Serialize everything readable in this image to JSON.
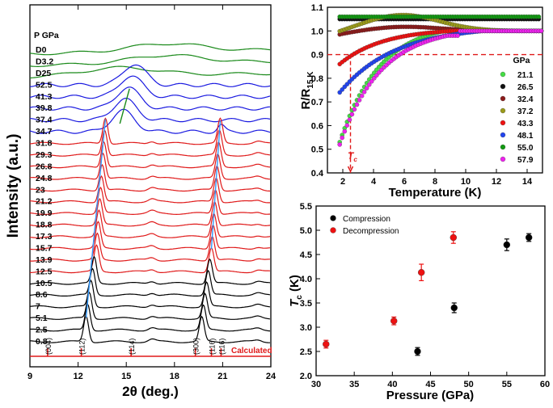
{
  "chart_data": [
    {
      "id": "xrd",
      "type": "line",
      "xlabel": "2θ (deg.)",
      "ylabel": "Intensity (a.u.)",
      "xlim": [
        9,
        24
      ],
      "xticks": [
        "9",
        "12",
        "15",
        "18",
        "21",
        "24"
      ],
      "header_label": "P GPa",
      "calculated_label": "Calculated",
      "pressures": [
        "D0",
        "D3.2",
        "D25",
        "52.5",
        "41.3",
        "39.8",
        "37.4",
        "34.7",
        "31.8",
        "29.3",
        "26.8",
        "24.8",
        "23",
        "21.2",
        "19.9",
        "18.8",
        "17.3",
        "15.7",
        "13.9",
        "12.5",
        "10.5",
        "8.6",
        "7",
        "5.1",
        "2.5",
        "0.8"
      ],
      "colors": [
        "#1a8a1a",
        "#1a8a1a",
        "#1a8a1a",
        "#1a1ae0",
        "#1a1ae0",
        "#1a1ae0",
        "#1a1ae0",
        "#1a1ae0",
        "#e01a1a",
        "#e01a1a",
        "#e01a1a",
        "#e01a1a",
        "#e01a1a",
        "#e01a1a",
        "#e01a1a",
        "#e01a1a",
        "#e01a1a",
        "#e01a1a",
        "#e01a1a",
        "#e01a1a",
        "#000000",
        "#000000",
        "#000000",
        "#000000",
        "#000000",
        "#000000"
      ],
      "peak1_positions": [
        null,
        null,
        14.6,
        15.5,
        15.3,
        15.1,
        14.9,
        14.8,
        13.7,
        13.65,
        13.6,
        13.55,
        13.5,
        13.45,
        13.4,
        13.35,
        13.3,
        13.25,
        13.2,
        13.15,
        13.0,
        12.9,
        12.8,
        12.7,
        12.6,
        12.5
      ],
      "peak2_positions": [
        null,
        null,
        null,
        null,
        null,
        null,
        null,
        20.9,
        20.85,
        20.8,
        20.75,
        20.7,
        20.65,
        20.6,
        20.55,
        20.5,
        20.45,
        20.4,
        20.35,
        20.3,
        20.2,
        20.1,
        20.0,
        19.9,
        19.8,
        19.7
      ],
      "reflections": [
        {
          "label": "(004)",
          "x": 10.1
        },
        {
          "label": "(112)",
          "x": 12.2
        },
        {
          "label": "(114)",
          "x": 15.3
        },
        {
          "label": "(300)",
          "x": 19.3
        },
        {
          "label": "(116)",
          "x": 20.3
        },
        {
          "label": "(116)",
          "x": 20.9
        }
      ]
    },
    {
      "id": "resistance",
      "type": "scatter",
      "xlabel": "Temperature (K)",
      "ylabel": "R/R",
      "ylabel_sub": "15 K",
      "xlim": [
        1,
        15
      ],
      "ylim": [
        0.4,
        1.1
      ],
      "xticks": [
        "2",
        "4",
        "6",
        "8",
        "10",
        "12",
        "14"
      ],
      "yticks": [
        "0.4",
        "0.5",
        "0.6",
        "0.7",
        "0.8",
        "0.9",
        "1.0",
        "1.1"
      ],
      "legend_title": "GPa",
      "tc_label": "T",
      "tc_sub": "c",
      "tc_value": 2.5,
      "threshold": 0.9,
      "series": [
        {
          "name": "21.1",
          "color": "#44dd44",
          "tc": 2.3,
          "start": 0.53,
          "plateau": 1.0,
          "hump": 0.0
        },
        {
          "name": "26.5",
          "color": "#111111",
          "tc": 1.0,
          "start": 1.05,
          "plateau": 1.05,
          "hump": 0.0
        },
        {
          "name": "32.4",
          "color": "#8b1a1a",
          "tc": 1.0,
          "start": 0.98,
          "plateau": 1.0,
          "hump": 0.02
        },
        {
          "name": "37.2",
          "color": "#9a9a1a",
          "tc": 1.0,
          "start": 0.98,
          "plateau": 1.0,
          "hump": 0.07
        },
        {
          "name": "43.3",
          "color": "#ee1111",
          "tc": 2.5,
          "start": 0.86,
          "plateau": 1.0,
          "hump": 0.0
        },
        {
          "name": "48.1",
          "color": "#2244ee",
          "tc": 3.3,
          "start": 0.74,
          "plateau": 1.0,
          "hump": 0.0
        },
        {
          "name": "55.0",
          "color": "#119911",
          "tc": 1.0,
          "start": 1.06,
          "plateau": 1.06,
          "hump": 0.0
        },
        {
          "name": "57.9",
          "color": "#ee22ee",
          "tc": 2.4,
          "start": 0.52,
          "plateau": 0.98,
          "hump": 0.0
        }
      ]
    },
    {
      "id": "tc_pressure",
      "type": "scatter",
      "xlabel": "Pressure (GPa)",
      "ylabel": "T",
      "ylabel_sub": "c",
      "ylabel_unit": " (K)",
      "xlim": [
        30,
        60
      ],
      "ylim": [
        2.0,
        5.5
      ],
      "xticks": [
        "30",
        "35",
        "40",
        "45",
        "50",
        "55",
        "60"
      ],
      "yticks": [
        "2.0",
        "2.5",
        "3.0",
        "3.5",
        "4.0",
        "4.5",
        "5.0",
        "5.5"
      ],
      "series": [
        {
          "name": "Compression",
          "color": "#000000",
          "points": [
            [
              43.3,
              2.5
            ],
            [
              48.1,
              3.4
            ],
            [
              55.0,
              4.7
            ],
            [
              57.9,
              4.85
            ]
          ],
          "err": [
            0.08,
            0.1,
            0.12,
            0.08
          ]
        },
        {
          "name": "Decompression",
          "color": "#ee1111",
          "points": [
            [
              31.3,
              2.65
            ],
            [
              40.2,
              3.13
            ],
            [
              43.8,
              4.13
            ],
            [
              48.0,
              4.85
            ]
          ],
          "err": [
            0.08,
            0.08,
            0.17,
            0.12
          ]
        }
      ]
    }
  ]
}
